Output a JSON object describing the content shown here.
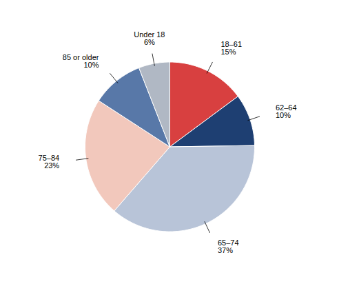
{
  "chart_data": {
    "type": "pie",
    "categories": [
      "18–61",
      "62–64",
      "65–74",
      "75–84",
      "85 or older",
      "Under 18"
    ],
    "values": [
      15,
      10,
      37,
      23,
      10,
      6
    ],
    "value_labels": [
      "15%",
      "10%",
      "37%",
      "23%",
      "10%",
      "6%"
    ],
    "colors": [
      "#d84040",
      "#1e3f72",
      "#b8c4d8",
      "#f2c8bc",
      "#5878a8",
      "#b0b8c4"
    ],
    "data_labels": true
  }
}
